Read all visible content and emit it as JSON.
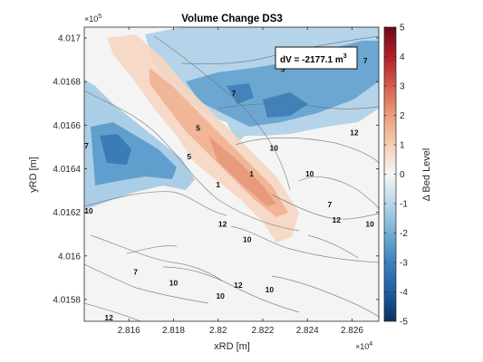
{
  "chart_data": {
    "type": "heatmap",
    "title": "Volume Change DS3",
    "xlabel": "xRD [m]",
    "ylabel": "yRD [m]",
    "colorbar_label": "Δ Bed Level",
    "annotation": "dV = -2177.1 m",
    "annotation_superscript": "3",
    "x_exponent_label": "×10",
    "x_exponent_power": "4",
    "y_exponent_label": "×10",
    "y_exponent_power": "5",
    "xlim": [
      2.814,
      2.8272
    ],
    "ylim": [
      4.0157,
      4.01705
    ],
    "x_ticks": [
      2.816,
      2.818,
      2.82,
      2.822,
      2.824,
      2.826
    ],
    "x_tick_labels": [
      "2.816",
      "2.818",
      "2.82",
      "2.822",
      "2.824",
      "2.826"
    ],
    "y_ticks": [
      4.0158,
      4.016,
      4.0162,
      4.0164,
      4.0166,
      4.0168,
      4.017
    ],
    "y_tick_labels": [
      "4.0158",
      "4.016",
      "4.0162",
      "4.0164",
      "4.0166",
      "4.0168",
      "4.017"
    ],
    "clim": [
      -5,
      5
    ],
    "c_ticks": [
      -5,
      -4,
      -3,
      -2,
      -1,
      0,
      1,
      2,
      3,
      4,
      5
    ],
    "c_tick_labels": [
      "-5",
      "-4",
      "-3",
      "-2",
      "-1",
      "0",
      "1",
      "2",
      "3",
      "4",
      "5"
    ],
    "colormap": "blue-white-red (diverging)",
    "contour_labels": [
      {
        "text": "7",
        "x": 2.8266,
        "y": 4.01689
      },
      {
        "text": "5",
        "x": 2.8229,
        "y": 4.01685
      },
      {
        "text": "7",
        "x": 2.8207,
        "y": 4.01674
      },
      {
        "text": "12",
        "x": 2.8261,
        "y": 4.01656
      },
      {
        "text": "5",
        "x": 2.8191,
        "y": 4.01658
      },
      {
        "text": "10",
        "x": 2.8225,
        "y": 4.01649
      },
      {
        "text": "7",
        "x": 2.8141,
        "y": 4.0165
      },
      {
        "text": "5",
        "x": 2.8187,
        "y": 4.01645
      },
      {
        "text": "1",
        "x": 2.8215,
        "y": 4.01637
      },
      {
        "text": "10",
        "x": 2.8241,
        "y": 4.01637
      },
      {
        "text": "1",
        "x": 2.82,
        "y": 4.01632
      },
      {
        "text": "7",
        "x": 2.825,
        "y": 4.01623
      },
      {
        "text": "10",
        "x": 2.8142,
        "y": 4.0162
      },
      {
        "text": "12",
        "x": 2.8253,
        "y": 4.01616
      },
      {
        "text": "12",
        "x": 2.8202,
        "y": 4.01614
      },
      {
        "text": "10",
        "x": 2.8268,
        "y": 4.01614
      },
      {
        "text": "10",
        "x": 2.8213,
        "y": 4.01607
      },
      {
        "text": "7",
        "x": 2.8163,
        "y": 4.01592
      },
      {
        "text": "10",
        "x": 2.818,
        "y": 4.01587
      },
      {
        "text": "12",
        "x": 2.8209,
        "y": 4.01586
      },
      {
        "text": "10",
        "x": 2.8223,
        "y": 4.01584
      },
      {
        "text": "10",
        "x": 2.8201,
        "y": 4.01581
      },
      {
        "text": "12",
        "x": 2.8151,
        "y": 4.01571
      }
    ]
  }
}
